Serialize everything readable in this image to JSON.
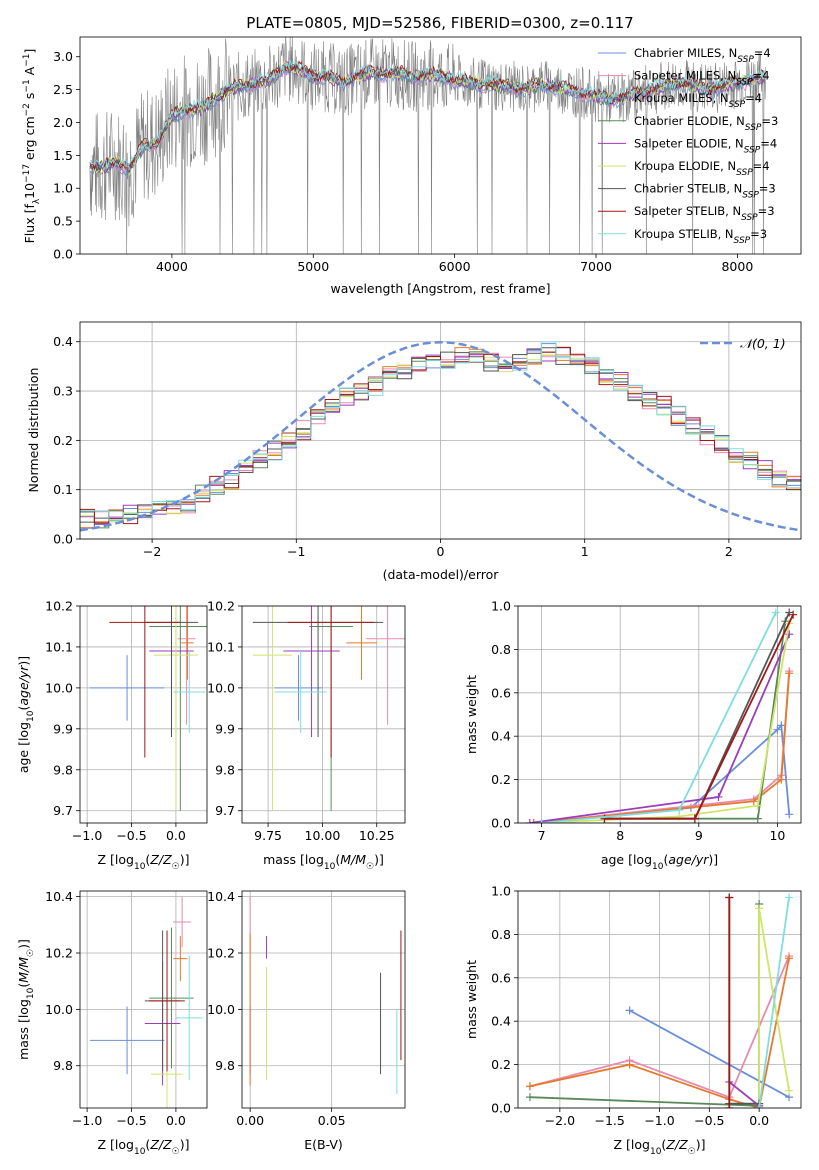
{
  "figure_title": "PLATE=0805, MJD=52586, FIBERID=0300, z=0.117",
  "colors": {
    "chabrier_miles": "#6a8fd6",
    "salpeter_miles": "#e98ab0",
    "kroupa_miles": "#5e8ad0",
    "chabrier_elodie": "#5a8a5a",
    "salpeter_elodie": "#9a3dbb",
    "kroupa_elodie": "#cfe56a",
    "chabrier_stelib": "#555555",
    "salpeter_stelib": "#a01818",
    "kroupa_stelib": "#7fdde0",
    "orange": "#e8792a",
    "grey_spectrum": "#808080",
    "gauss": "#6a8fd6"
  },
  "chart_data": [
    {
      "type": "line",
      "panel": "spectrum",
      "xlabel": "wavelength [Angstrom, rest frame]",
      "ylabel": "Flux [f_λ 10^-17 erg cm^-2 s^-1 A^-1]",
      "xlim": [
        3350,
        8450
      ],
      "ylim": [
        0,
        3.3
      ],
      "xticks": [
        "4000",
        "5000",
        "6000",
        "7000",
        "8000"
      ],
      "yticks": [
        "0.0",
        "0.5",
        "1.0",
        "1.5",
        "2.0",
        "2.5",
        "3.0"
      ],
      "legend": [
        {
          "label": "Chabrier MILES, N",
          "sub": "SSP",
          "suffix": "=4",
          "color": "#6a8fd6"
        },
        {
          "label": "Salpeter MILES, N",
          "sub": "SSP",
          "suffix": "=4",
          "color": "#e98ab0"
        },
        {
          "label": "Kroupa MILES, N",
          "sub": "SSP",
          "suffix": "=4",
          "color": "#5e8ad0"
        },
        {
          "label": "Chabrier ELODIE, N",
          "sub": "SSP",
          "suffix": "=3",
          "color": "#5a8a5a"
        },
        {
          "label": "Salpeter ELODIE, N",
          "sub": "SSP",
          "suffix": "=4",
          "color": "#9a3dbb"
        },
        {
          "label": "Kroupa ELODIE, N",
          "sub": "SSP",
          "suffix": "=4",
          "color": "#cfe56a"
        },
        {
          "label": "Chabrier STELIB, N",
          "sub": "SSP",
          "suffix": "=3",
          "color": "#555555"
        },
        {
          "label": "Salpeter STELIB, N",
          "sub": "SSP",
          "suffix": "=3",
          "color": "#a01818"
        },
        {
          "label": "Kroupa STELIB, N",
          "sub": "SSP",
          "suffix": "=3",
          "color": "#7fdde0"
        }
      ],
      "model_continuum": {
        "x": [
          3420,
          3500,
          3600,
          3700,
          3800,
          3900,
          4000,
          4100,
          4200,
          4300,
          4400,
          4500,
          4600,
          4700,
          4800,
          4900,
          5000,
          5100,
          5200,
          5300,
          5400,
          5500,
          5600,
          5700,
          5800,
          5900,
          6000,
          6100,
          6200,
          6300,
          6400,
          6500,
          6600,
          6700,
          6800,
          6900,
          7000,
          7100,
          7200,
          7300,
          7400,
          7500,
          7600,
          7700,
          7800,
          7900,
          8000,
          8100,
          8200
        ],
        "y": [
          1.35,
          1.3,
          1.4,
          1.3,
          1.65,
          1.7,
          2.1,
          2.2,
          2.2,
          2.35,
          2.5,
          2.55,
          2.6,
          2.65,
          2.85,
          2.8,
          2.7,
          2.7,
          2.6,
          2.7,
          2.75,
          2.75,
          2.75,
          2.7,
          2.72,
          2.7,
          2.65,
          2.6,
          2.58,
          2.55,
          2.55,
          2.5,
          2.58,
          2.55,
          2.5,
          2.45,
          2.4,
          2.35,
          2.38,
          2.45,
          2.5,
          2.55,
          2.6,
          2.55,
          2.5,
          2.55,
          2.6,
          2.65,
          2.7
        ]
      }
    },
    {
      "type": "histogram",
      "panel": "residuals",
      "xlabel": "(data-model)/error",
      "ylabel": "Normed distribution",
      "xlim": [
        -2.5,
        2.5
      ],
      "ylim": [
        0,
        0.44
      ],
      "xticks": [
        "−2",
        "−1",
        "0",
        "1",
        "2"
      ],
      "yticks": [
        "0.0",
        "0.1",
        "0.2",
        "0.3",
        "0.4"
      ],
      "legend": [
        {
          "label": "N(0,1)",
          "color": "#6a8fd6"
        }
      ],
      "bin_edges_start": -2.5,
      "bin_width": 0.1,
      "approx_counts": [
        0.04,
        0.04,
        0.05,
        0.05,
        0.06,
        0.06,
        0.06,
        0.07,
        0.09,
        0.11,
        0.12,
        0.14,
        0.16,
        0.18,
        0.2,
        0.22,
        0.25,
        0.27,
        0.29,
        0.3,
        0.31,
        0.33,
        0.34,
        0.35,
        0.36,
        0.36,
        0.37,
        0.37,
        0.36,
        0.35,
        0.36,
        0.37,
        0.38,
        0.37,
        0.36,
        0.35,
        0.33,
        0.32,
        0.3,
        0.28,
        0.27,
        0.25,
        0.23,
        0.21,
        0.19,
        0.17,
        0.16,
        0.14,
        0.12,
        0.11,
        0.1,
        0.09,
        0.08,
        0.08,
        0.07,
        0.06,
        0.06,
        0.05,
        0.05,
        0.04
      ]
    },
    {
      "type": "errorbar",
      "panel": "age_vs_Z",
      "xlabel": "Z [log10(Z/Z☉)]",
      "ylabel": "age [log10(age/yr)]",
      "xlim": [
        -1.08,
        0.35
      ],
      "ylim": [
        9.67,
        10.2
      ],
      "xticks": [
        "−1.0",
        "−0.5",
        "0.0"
      ],
      "yticks": [
        "9.7",
        "9.8",
        "9.9",
        "10.0",
        "10.1",
        "10.2"
      ],
      "points": [
        {
          "x": -0.55,
          "y": 10.0,
          "xerr": 0.42,
          "yerr": 0.08,
          "color": "#6a8fd6"
        },
        {
          "x": 0.12,
          "y": 10.12,
          "xerr": 0.1,
          "yerr": 0.21,
          "color": "#e98ab0"
        },
        {
          "x": 0.13,
          "y": 10.11,
          "xerr": 0.07,
          "yerr": 0.09,
          "color": "#e8792a"
        },
        {
          "x": 0.05,
          "y": 10.15,
          "xerr": 0.35,
          "yerr": 0.45,
          "color": "#5a8a5a"
        },
        {
          "x": -0.05,
          "y": 10.09,
          "xerr": 0.25,
          "yerr": 0.21,
          "color": "#9a3dbb"
        },
        {
          "x": 0.0,
          "y": 10.08,
          "xerr": 0.25,
          "yerr": 0.38,
          "color": "#cfe56a"
        },
        {
          "x": -0.05,
          "y": 10.16,
          "xerr": 0.3,
          "yerr": 0.28,
          "color": "#555555"
        },
        {
          "x": -0.35,
          "y": 10.16,
          "xerr": 0.4,
          "yerr": 0.33,
          "color": "#a01818"
        },
        {
          "x": 0.15,
          "y": 9.99,
          "xerr": 0.18,
          "yerr": 0.1,
          "color": "#7fdde0"
        }
      ]
    },
    {
      "type": "errorbar",
      "panel": "age_vs_mass",
      "xlabel": "mass [log10(M/M☉)]",
      "ylabel": "",
      "xlim": [
        9.63,
        10.38
      ],
      "ylim": [
        9.67,
        10.2
      ],
      "xticks": [
        "9.75",
        "10.00",
        "10.25"
      ],
      "yticks": [
        "9.7",
        "9.8",
        "9.9",
        "10.0",
        "10.1",
        "10.2"
      ],
      "points": [
        {
          "x": 9.89,
          "y": 10.0,
          "xerr": 0.11,
          "yerr": 0.08,
          "color": "#6a8fd6"
        },
        {
          "x": 10.3,
          "y": 10.12,
          "xerr": 0.1,
          "yerr": 0.21,
          "color": "#e98ab0"
        },
        {
          "x": 10.18,
          "y": 10.11,
          "xerr": 0.07,
          "yerr": 0.09,
          "color": "#e8792a"
        },
        {
          "x": 10.04,
          "y": 10.15,
          "xerr": 0.1,
          "yerr": 0.45,
          "color": "#5a8a5a"
        },
        {
          "x": 9.95,
          "y": 10.09,
          "xerr": 0.13,
          "yerr": 0.21,
          "color": "#9a3dbb"
        },
        {
          "x": 9.77,
          "y": 10.08,
          "xerr": 0.09,
          "yerr": 0.38,
          "color": "#cfe56a"
        },
        {
          "x": 9.98,
          "y": 10.16,
          "xerr": 0.3,
          "yerr": 0.28,
          "color": "#555555"
        },
        {
          "x": 10.04,
          "y": 10.16,
          "xerr": 0.2,
          "yerr": 0.33,
          "color": "#a01818"
        },
        {
          "x": 9.9,
          "y": 9.99,
          "xerr": 0.12,
          "yerr": 0.1,
          "color": "#7fdde0"
        }
      ]
    },
    {
      "type": "line",
      "panel": "mass_weight_vs_age",
      "xlabel": "age [log10(age/yr)]",
      "ylabel": "mass weight",
      "xlim": [
        6.7,
        10.3
      ],
      "ylim": [
        0,
        1.0
      ],
      "xticks": [
        "7",
        "8",
        "9",
        "10"
      ],
      "yticks": [
        "0.0",
        "0.2",
        "0.4",
        "0.6",
        "0.8",
        "1.0"
      ],
      "series": [
        {
          "color": "#6a8fd6",
          "x": [
            6.9,
            8.9,
            10.0,
            10.05,
            10.15
          ],
          "y": [
            0.0,
            0.07,
            0.43,
            0.45,
            0.04
          ]
        },
        {
          "color": "#e98ab0",
          "x": [
            6.9,
            9.7,
            10.05,
            10.15
          ],
          "y": [
            0.0,
            0.11,
            0.22,
            0.7
          ]
        },
        {
          "color": "#e8792a",
          "x": [
            6.9,
            9.7,
            10.05,
            10.15
          ],
          "y": [
            0.0,
            0.1,
            0.2,
            0.69
          ]
        },
        {
          "color": "#5a8a5a",
          "x": [
            7.8,
            9.75,
            10.1
          ],
          "y": [
            0.02,
            0.02,
            0.93
          ]
        },
        {
          "color": "#9a3dbb",
          "x": [
            6.85,
            9.25,
            10.15
          ],
          "y": [
            0.0,
            0.12,
            0.87
          ]
        },
        {
          "color": "#cfe56a",
          "x": [
            7.0,
            8.75,
            9.75,
            10.15
          ],
          "y": [
            0.0,
            0.03,
            0.08,
            0.92
          ]
        },
        {
          "color": "#555555",
          "x": [
            7.8,
            8.95,
            10.15
          ],
          "y": [
            0.02,
            0.02,
            0.97
          ]
        },
        {
          "color": "#a01818",
          "x": [
            7.8,
            8.95,
            10.2
          ],
          "y": [
            0.02,
            0.02,
            0.96
          ]
        },
        {
          "color": "#7fdde0",
          "x": [
            7.0,
            8.75,
            9.98
          ],
          "y": [
            0.0,
            0.06,
            0.97
          ]
        }
      ]
    },
    {
      "type": "errorbar",
      "panel": "mass_vs_Z",
      "xlabel": "Z [log10(Z/Z☉)]",
      "ylabel": "mass [log10(M/M☉)]",
      "xlim": [
        -1.08,
        0.35
      ],
      "ylim": [
        9.65,
        10.42
      ],
      "xticks": [
        "−1.0",
        "−0.5",
        "0.0"
      ],
      "yticks": [
        "9.8",
        "10.0",
        "10.2",
        "10.4"
      ],
      "points": [
        {
          "x": -0.55,
          "y": 9.89,
          "xerr": 0.42,
          "yerr": 0.12,
          "color": "#6a8fd6"
        },
        {
          "x": 0.07,
          "y": 10.31,
          "xerr": 0.1,
          "yerr": 0.09,
          "color": "#e98ab0"
        },
        {
          "x": 0.05,
          "y": 10.18,
          "xerr": 0.08,
          "yerr": 0.08,
          "color": "#e8792a"
        },
        {
          "x": -0.05,
          "y": 10.04,
          "xerr": 0.25,
          "yerr": 0.25,
          "color": "#5a8a5a"
        },
        {
          "x": -0.15,
          "y": 9.95,
          "xerr": 0.2,
          "yerr": 0.22,
          "color": "#9a3dbb"
        },
        {
          "x": -0.1,
          "y": 9.77,
          "xerr": 0.18,
          "yerr": 0.12,
          "color": "#cfe56a"
        },
        {
          "x": -0.15,
          "y": 10.03,
          "xerr": 0.2,
          "yerr": 0.25,
          "color": "#555555"
        },
        {
          "x": -0.1,
          "y": 10.03,
          "xerr": 0.2,
          "yerr": 0.25,
          "color": "#a01818"
        },
        {
          "x": 0.15,
          "y": 9.97,
          "xerr": 0.15,
          "yerr": 0.22,
          "color": "#7fdde0"
        }
      ]
    },
    {
      "type": "errorbar",
      "panel": "mass_vs_EBV",
      "xlabel": "E(B-V)",
      "ylabel": "",
      "xlim": [
        -0.005,
        0.095
      ],
      "ylim": [
        9.65,
        10.42
      ],
      "xticks": [
        "0.00",
        "0.05"
      ],
      "yticks": [
        "9.8",
        "10.0",
        "10.2",
        "10.4"
      ],
      "points": [
        {
          "x": 0.0,
          "y": 9.89,
          "yerr": 0.12,
          "color": "#6a8fd6"
        },
        {
          "x": 0.0,
          "y": 10.3,
          "yerr": 0.1,
          "color": "#e98ab0"
        },
        {
          "x": 0.0,
          "y": 10.0,
          "yerr": 0.27,
          "color": "#e8792a"
        },
        {
          "x": 0.01,
          "y": 10.22,
          "yerr": 0.04,
          "color": "#9a3dbb"
        },
        {
          "x": 0.01,
          "y": 9.95,
          "yerr": 0.2,
          "color": "#cfe56a"
        },
        {
          "x": 0.08,
          "y": 9.95,
          "yerr": 0.18,
          "color": "#555555"
        },
        {
          "x": 0.0925,
          "y": 10.05,
          "yerr": 0.23,
          "color": "#a01818"
        },
        {
          "x": 0.09,
          "y": 9.85,
          "yerr": 0.15,
          "color": "#7fdde0"
        }
      ]
    },
    {
      "type": "line",
      "panel": "mass_weight_vs_Z",
      "xlabel": "Z [log10(Z/Z☉)]",
      "ylabel": "mass weight",
      "xlim": [
        -2.42,
        0.42
      ],
      "ylim": [
        0,
        1.0
      ],
      "xticks": [
        "−2.0",
        "−1.5",
        "−1.0",
        "−0.5",
        "0.0"
      ],
      "yticks": [
        "0.0",
        "0.2",
        "0.4",
        "0.6",
        "0.8",
        "1.0"
      ],
      "series": [
        {
          "color": "#6a8fd6",
          "x": [
            -1.3,
            0.3
          ],
          "y": [
            0.45,
            0.05
          ]
        },
        {
          "color": "#e98ab0",
          "x": [
            -2.3,
            -1.3,
            -0.3,
            0.3
          ],
          "y": [
            0.1,
            0.22,
            0.05,
            0.7
          ]
        },
        {
          "color": "#e8792a",
          "x": [
            -2.3,
            -1.3,
            -0.3,
            0.0,
            0.3
          ],
          "y": [
            0.1,
            0.2,
            0.04,
            0.0,
            0.69
          ]
        },
        {
          "color": "#5a8a5a",
          "x": [
            -2.3,
            0.0,
            0.0
          ],
          "y": [
            0.05,
            0.01,
            0.94
          ]
        },
        {
          "color": "#9a3dbb",
          "x": [
            -0.3,
            0.0
          ],
          "y": [
            0.12,
            0.01
          ]
        },
        {
          "color": "#cfe56a",
          "x": [
            0.0,
            0.0,
            0.3
          ],
          "y": [
            0.0,
            0.92,
            0.08
          ]
        },
        {
          "color": "#555555",
          "x": [
            -0.3,
            -0.3,
            0.0
          ],
          "y": [
            0.97,
            0.02,
            0.02
          ]
        },
        {
          "color": "#a01818",
          "x": [
            -0.3,
            -0.3
          ],
          "y": [
            0.97,
            0.0
          ]
        },
        {
          "color": "#7fdde0",
          "x": [
            0.0,
            0.3
          ],
          "y": [
            0.0,
            0.97
          ]
        }
      ]
    }
  ]
}
